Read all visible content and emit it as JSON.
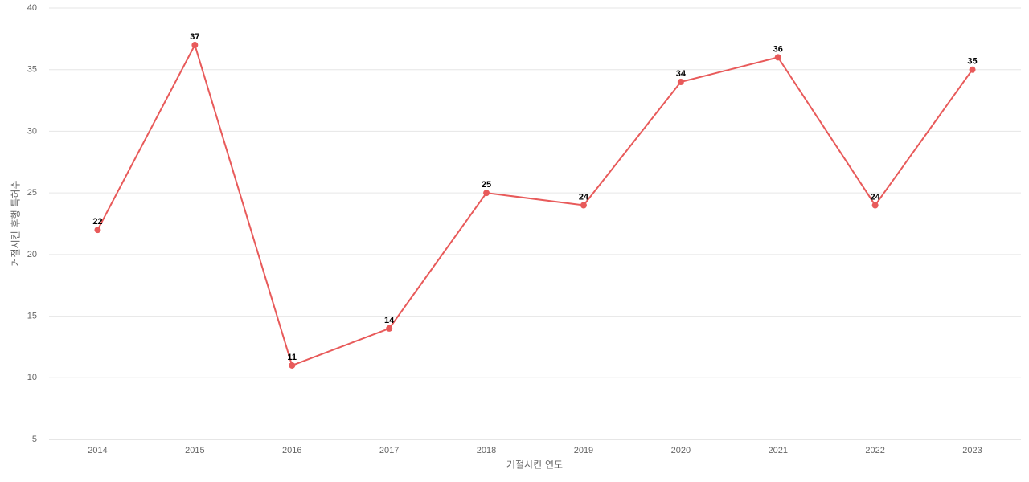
{
  "chart_data": {
    "type": "line",
    "x_label": "거절시킨 연도",
    "y_label": "거절시킨 후행 특허수",
    "categories": [
      "2014",
      "2015",
      "2016",
      "2017",
      "2018",
      "2019",
      "2020",
      "2021",
      "2022",
      "2023"
    ],
    "series": [
      {
        "name": "거절시킨 후행 특허수",
        "color": "#e85a5a",
        "values": [
          22,
          37,
          11,
          14,
          25,
          24,
          34,
          36,
          24,
          35
        ]
      }
    ],
    "ylim": [
      5,
      40
    ],
    "yticks": [
      5,
      10,
      15,
      20,
      25,
      30,
      35,
      40
    ],
    "grid": true
  }
}
